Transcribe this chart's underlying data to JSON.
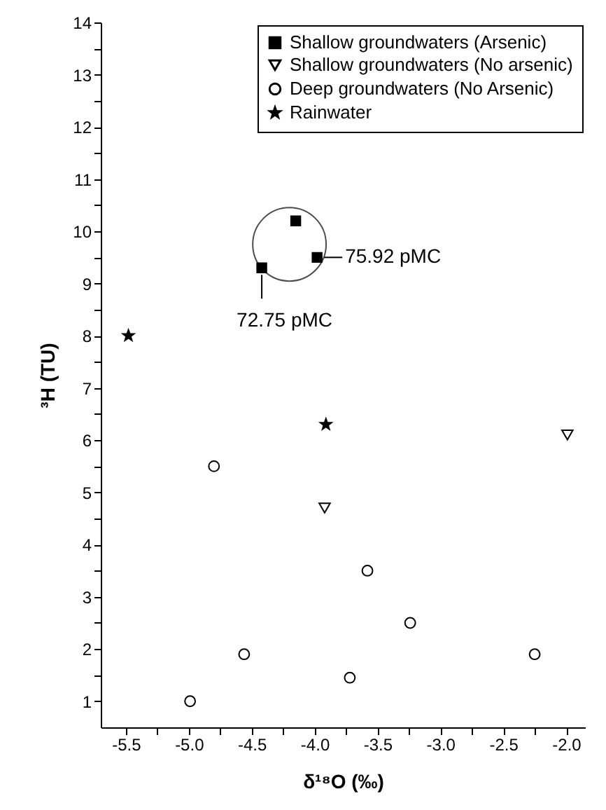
{
  "chart_data": {
    "type": "scatter",
    "xlabel": "δ¹⁸O (‰)",
    "ylabel": "³H (TU)",
    "xlim": [
      -5.7,
      -1.85
    ],
    "ylim": [
      0.5,
      14
    ],
    "xticks": [
      {
        "value": -5.5,
        "label": "-5.5"
      },
      {
        "value": -5.25,
        "label": null
      },
      {
        "value": -5.0,
        "label": "-5.0"
      },
      {
        "value": -4.75,
        "label": null
      },
      {
        "value": -4.5,
        "label": "-4.5"
      },
      {
        "value": -4.25,
        "label": null
      },
      {
        "value": -4.0,
        "label": "-4.0"
      },
      {
        "value": -3.75,
        "label": null
      },
      {
        "value": -3.5,
        "label": "-3.5"
      },
      {
        "value": -3.25,
        "label": null
      },
      {
        "value": -3.0,
        "label": "-3.0"
      },
      {
        "value": -2.75,
        "label": null
      },
      {
        "value": -2.5,
        "label": "-2.5"
      },
      {
        "value": -2.25,
        "label": null
      },
      {
        "value": -2.0,
        "label": "-2.0"
      }
    ],
    "yticks": [
      1,
      {
        "value": 1.5,
        "label": null
      },
      2,
      {
        "value": 2.5,
        "label": null
      },
      3,
      {
        "value": 3.5,
        "label": null
      },
      4,
      {
        "value": 4.5,
        "label": null
      },
      5,
      {
        "value": 5.5,
        "label": null
      },
      6,
      {
        "value": 6.5,
        "label": null
      },
      7,
      {
        "value": 7.5,
        "label": null
      },
      8,
      {
        "value": 8.5,
        "label": null
      },
      9,
      {
        "value": 9.5,
        "label": null
      },
      10,
      {
        "value": 10.5,
        "label": null
      },
      11,
      {
        "value": 11.5,
        "label": null
      },
      12,
      {
        "value": 12.5,
        "label": null
      },
      13,
      {
        "value": 13.5,
        "label": null
      },
      14
    ],
    "grid": false,
    "legend": "top right",
    "series": [
      {
        "name": "Shallow groundwaters (Arsenic)",
        "color": "#000000",
        "marker": "square",
        "x": [
          -4.15,
          -4.42,
          -3.98
        ],
        "values": [
          10.2,
          9.3,
          9.5
        ]
      },
      {
        "name": "Shallow groundwaters (No arsenic)",
        "color": "#000000",
        "marker": "triangle-down",
        "x": [
          -3.92,
          -1.99
        ],
        "values": [
          4.7,
          6.1
        ]
      },
      {
        "name": "Deep groundwaters (No Arsenic)",
        "color": "#000000",
        "marker": "circle",
        "x": [
          -4.99,
          -4.8,
          -4.56,
          -3.72,
          -3.58,
          -3.24,
          -2.25
        ],
        "values": [
          1.0,
          5.5,
          1.9,
          1.45,
          3.5,
          2.5,
          1.9
        ]
      },
      {
        "name": "Rainwater",
        "color": "#000000",
        "marker": "star",
        "x": [
          -5.48,
          -3.91
        ],
        "values": [
          8.0,
          6.3
        ]
      }
    ],
    "annotations": [
      {
        "text": "75.92 pMC",
        "x": -3.98,
        "y": 9.5
      },
      {
        "text": "72.75 pMC",
        "x": -4.42,
        "y": 9.3
      }
    ]
  }
}
